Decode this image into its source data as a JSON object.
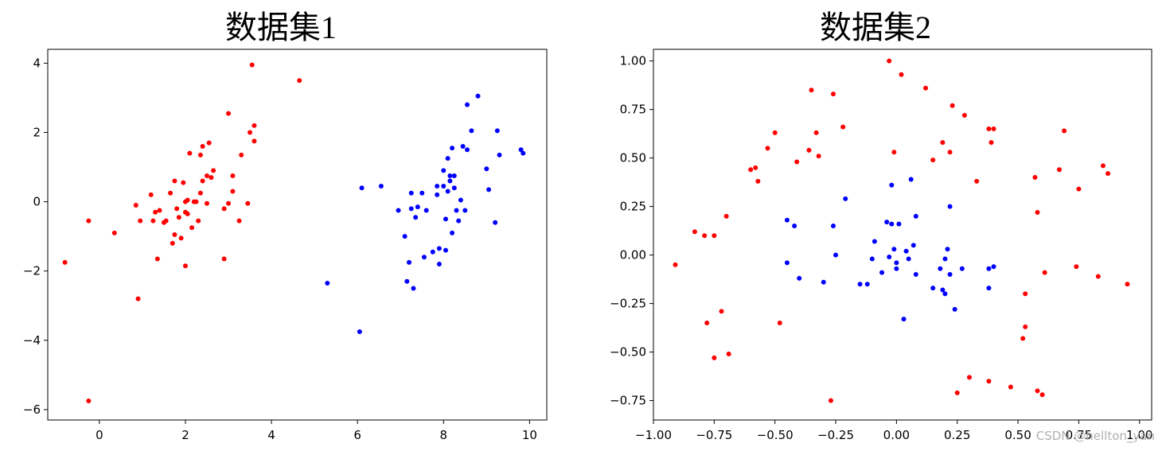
{
  "watermark": "CSDN @hellton_yan",
  "chart_data": [
    {
      "type": "scatter",
      "title": "数据集1",
      "xlim": [
        -1.2,
        10.4
      ],
      "ylim": [
        -6.3,
        4.4
      ],
      "xticks": [
        0,
        2,
        4,
        6,
        8,
        10
      ],
      "yticks": [
        -6,
        -4,
        -2,
        0,
        2,
        4
      ],
      "xtick_labels": [
        "0",
        "2",
        "4",
        "6",
        "8",
        "10"
      ],
      "ytick_labels": [
        "−6",
        "−4",
        "−2",
        "0",
        "2",
        "4"
      ],
      "grid": false,
      "series": [
        {
          "color": "#ff0000",
          "points": [
            [
              -0.8,
              -1.75
            ],
            [
              -0.25,
              -0.55
            ],
            [
              -0.25,
              -5.75
            ],
            [
              0.35,
              -0.9
            ],
            [
              0.85,
              -0.1
            ],
            [
              0.9,
              -2.8
            ],
            [
              0.95,
              -0.55
            ],
            [
              1.2,
              0.2
            ],
            [
              1.25,
              -0.55
            ],
            [
              1.3,
              -0.3
            ],
            [
              1.35,
              -1.65
            ],
            [
              1.4,
              -0.25
            ],
            [
              1.5,
              -0.6
            ],
            [
              1.55,
              -0.55
            ],
            [
              1.65,
              0.25
            ],
            [
              1.7,
              -1.2
            ],
            [
              1.75,
              -0.95
            ],
            [
              1.75,
              0.6
            ],
            [
              1.8,
              -0.2
            ],
            [
              1.85,
              -0.45
            ],
            [
              1.9,
              -1.05
            ],
            [
              1.95,
              0.55
            ],
            [
              2.0,
              -0.3
            ],
            [
              2.0,
              0.0
            ],
            [
              2.0,
              -1.85
            ],
            [
              2.05,
              -0.35
            ],
            [
              2.05,
              0.05
            ],
            [
              2.1,
              1.4
            ],
            [
              2.15,
              -0.75
            ],
            [
              2.2,
              0.0
            ],
            [
              2.25,
              0.0
            ],
            [
              2.3,
              -0.55
            ],
            [
              2.35,
              0.25
            ],
            [
              2.35,
              1.35
            ],
            [
              2.4,
              1.6
            ],
            [
              2.4,
              0.6
            ],
            [
              2.5,
              0.75
            ],
            [
              2.5,
              -0.05
            ],
            [
              2.55,
              1.7
            ],
            [
              2.6,
              0.7
            ],
            [
              2.65,
              0.9
            ],
            [
              2.9,
              -0.2
            ],
            [
              2.9,
              -1.65
            ],
            [
              3.0,
              2.55
            ],
            [
              3.0,
              -0.05
            ],
            [
              3.1,
              0.3
            ],
            [
              3.1,
              0.75
            ],
            [
              3.25,
              -0.55
            ],
            [
              3.3,
              1.35
            ],
            [
              3.45,
              -0.05
            ],
            [
              3.5,
              2.0
            ],
            [
              3.55,
              3.95
            ],
            [
              3.6,
              2.2
            ],
            [
              3.6,
              1.75
            ],
            [
              4.65,
              3.5
            ]
          ]
        },
        {
          "color": "#0000ff",
          "points": [
            [
              5.3,
              -2.35
            ],
            [
              6.05,
              -3.75
            ],
            [
              6.1,
              0.4
            ],
            [
              6.55,
              0.45
            ],
            [
              6.95,
              -0.25
            ],
            [
              7.1,
              -1.0
            ],
            [
              7.15,
              -2.3
            ],
            [
              7.2,
              -1.75
            ],
            [
              7.25,
              -0.2
            ],
            [
              7.25,
              0.25
            ],
            [
              7.3,
              -2.5
            ],
            [
              7.35,
              -0.45
            ],
            [
              7.4,
              -0.15
            ],
            [
              7.5,
              0.25
            ],
            [
              7.55,
              -1.6
            ],
            [
              7.6,
              -0.25
            ],
            [
              7.75,
              -1.45
            ],
            [
              7.85,
              0.45
            ],
            [
              7.85,
              0.2
            ],
            [
              7.9,
              -1.8
            ],
            [
              7.9,
              -1.35
            ],
            [
              8.0,
              0.9
            ],
            [
              8.0,
              0.45
            ],
            [
              8.05,
              -1.4
            ],
            [
              8.05,
              -0.5
            ],
            [
              8.1,
              0.3
            ],
            [
              8.1,
              1.25
            ],
            [
              8.15,
              0.75
            ],
            [
              8.15,
              0.6
            ],
            [
              8.2,
              -0.9
            ],
            [
              8.2,
              1.55
            ],
            [
              8.25,
              0.4
            ],
            [
              8.25,
              0.75
            ],
            [
              8.3,
              -0.25
            ],
            [
              8.35,
              -0.55
            ],
            [
              8.4,
              0.05
            ],
            [
              8.45,
              1.6
            ],
            [
              8.5,
              -0.25
            ],
            [
              8.55,
              1.5
            ],
            [
              8.55,
              2.8
            ],
            [
              8.65,
              2.05
            ],
            [
              8.8,
              3.05
            ],
            [
              9.0,
              0.95
            ],
            [
              9.05,
              0.35
            ],
            [
              9.2,
              -0.6
            ],
            [
              9.25,
              2.05
            ],
            [
              9.3,
              1.35
            ],
            [
              9.8,
              1.5
            ],
            [
              9.85,
              1.4
            ]
          ]
        }
      ]
    },
    {
      "type": "scatter",
      "title": "数据集2",
      "xlim": [
        -1.0,
        1.05
      ],
      "ylim": [
        -0.85,
        1.06
      ],
      "xticks": [
        -1.0,
        -0.75,
        -0.5,
        -0.25,
        0.0,
        0.25,
        0.5,
        0.75,
        1.0
      ],
      "yticks": [
        -0.75,
        -0.5,
        -0.25,
        0.0,
        0.25,
        0.5,
        0.75,
        1.0
      ],
      "xtick_labels": [
        "−1.00",
        "−0.75",
        "−0.50",
        "−0.25",
        "0.00",
        "0.25",
        "0.50",
        "0.75",
        "1.00"
      ],
      "ytick_labels": [
        "−0.75",
        "−0.50",
        "−0.25",
        "0.00",
        "0.25",
        "0.50",
        "0.75",
        "1.00"
      ],
      "grid": false,
      "series": [
        {
          "color": "#ff0000",
          "points": [
            [
              -0.91,
              -0.05
            ],
            [
              -0.83,
              0.12
            ],
            [
              -0.79,
              0.1
            ],
            [
              -0.78,
              -0.35
            ],
            [
              -0.75,
              0.1
            ],
            [
              -0.72,
              -0.29
            ],
            [
              -0.75,
              -0.53
            ],
            [
              -0.7,
              0.2
            ],
            [
              -0.69,
              -0.51
            ],
            [
              -0.6,
              0.44
            ],
            [
              -0.58,
              0.45
            ],
            [
              -0.57,
              0.38
            ],
            [
              -0.53,
              0.55
            ],
            [
              -0.5,
              0.63
            ],
            [
              -0.48,
              -0.35
            ],
            [
              -0.41,
              0.48
            ],
            [
              -0.36,
              0.54
            ],
            [
              -0.35,
              0.85
            ],
            [
              -0.33,
              0.63
            ],
            [
              -0.32,
              0.51
            ],
            [
              -0.26,
              0.83
            ],
            [
              -0.27,
              -0.75
            ],
            [
              -0.22,
              0.66
            ],
            [
              -0.03,
              1.0
            ],
            [
              -0.01,
              0.53
            ],
            [
              0.02,
              0.93
            ],
            [
              0.12,
              0.86
            ],
            [
              0.15,
              0.49
            ],
            [
              0.19,
              0.58
            ],
            [
              0.22,
              0.53
            ],
            [
              0.23,
              0.77
            ],
            [
              0.28,
              0.72
            ],
            [
              0.25,
              -0.71
            ],
            [
              0.3,
              -0.63
            ],
            [
              0.33,
              0.38
            ],
            [
              0.38,
              0.65
            ],
            [
              0.39,
              0.58
            ],
            [
              0.4,
              0.65
            ],
            [
              0.38,
              -0.65
            ],
            [
              0.47,
              -0.68
            ],
            [
              0.52,
              -0.43
            ],
            [
              0.53,
              -0.2
            ],
            [
              0.53,
              -0.37
            ],
            [
              0.57,
              0.4
            ],
            [
              0.58,
              -0.7
            ],
            [
              0.58,
              0.22
            ],
            [
              0.6,
              -0.72
            ],
            [
              0.61,
              -0.09
            ],
            [
              0.67,
              0.44
            ],
            [
              0.69,
              0.64
            ],
            [
              0.74,
              -0.06
            ],
            [
              0.75,
              0.34
            ],
            [
              0.83,
              -0.11
            ],
            [
              0.85,
              0.46
            ],
            [
              0.87,
              0.42
            ],
            [
              0.95,
              -0.15
            ]
          ]
        },
        {
          "color": "#0000ff",
          "points": [
            [
              -0.45,
              -0.04
            ],
            [
              -0.45,
              0.18
            ],
            [
              -0.42,
              0.15
            ],
            [
              -0.4,
              -0.12
            ],
            [
              -0.3,
              -0.14
            ],
            [
              -0.26,
              0.15
            ],
            [
              -0.25,
              0.0
            ],
            [
              -0.21,
              0.29
            ],
            [
              -0.15,
              -0.15
            ],
            [
              -0.12,
              -0.15
            ],
            [
              -0.1,
              -0.02
            ],
            [
              -0.09,
              0.07
            ],
            [
              -0.06,
              -0.09
            ],
            [
              -0.04,
              0.17
            ],
            [
              -0.03,
              -0.01
            ],
            [
              -0.02,
              0.16
            ],
            [
              -0.02,
              0.36
            ],
            [
              -0.01,
              0.03
            ],
            [
              0.0,
              -0.07
            ],
            [
              0.0,
              -0.04
            ],
            [
              0.01,
              0.16
            ],
            [
              0.03,
              -0.33
            ],
            [
              0.04,
              0.02
            ],
            [
              0.05,
              -0.02
            ],
            [
              0.06,
              0.39
            ],
            [
              0.07,
              0.05
            ],
            [
              0.08,
              0.2
            ],
            [
              0.08,
              -0.1
            ],
            [
              0.15,
              -0.17
            ],
            [
              0.18,
              -0.07
            ],
            [
              0.19,
              -0.18
            ],
            [
              0.2,
              -0.02
            ],
            [
              0.2,
              -0.2
            ],
            [
              0.21,
              0.03
            ],
            [
              0.22,
              0.25
            ],
            [
              0.22,
              -0.1
            ],
            [
              0.24,
              -0.28
            ],
            [
              0.27,
              -0.07
            ],
            [
              0.38,
              -0.07
            ],
            [
              0.38,
              -0.17
            ],
            [
              0.4,
              -0.06
            ]
          ]
        }
      ]
    }
  ]
}
